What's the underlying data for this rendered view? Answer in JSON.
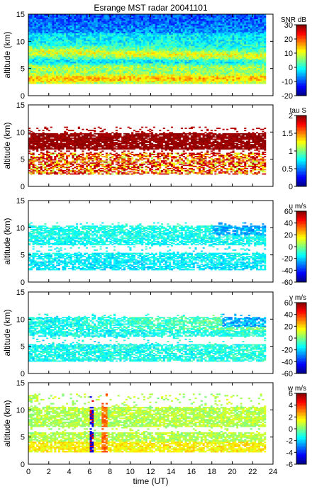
{
  "figure": {
    "title": "Esrange MST radar 20041101",
    "xlabel": "time (UT)",
    "x_ticks": [
      "0",
      "2",
      "4",
      "6",
      "8",
      "10",
      "12",
      "14",
      "16",
      "18",
      "20",
      "22",
      "24"
    ],
    "xlim": [
      0,
      24
    ]
  },
  "chart_data": [
    {
      "type": "heatmap",
      "panel": 1,
      "title": "Esrange MST radar 20041101",
      "xlabel": "",
      "ylabel": "altitude (km)",
      "xlim": [
        0,
        24
      ],
      "ylim": [
        0,
        15
      ],
      "y_ticks": [
        "0",
        "5",
        "10",
        "15"
      ],
      "data_xrange": [
        0,
        23.3
      ],
      "data_yrange": [
        2.2,
        15
      ],
      "colorbar": {
        "label": "SNR dB",
        "range": [
          -20,
          30
        ],
        "ticks": [
          "30",
          "20",
          "10",
          "0",
          "-10",
          "-20"
        ]
      },
      "field": "snr"
    },
    {
      "type": "heatmap",
      "panel": 2,
      "xlabel": "",
      "ylabel": "altitude (km)",
      "xlim": [
        0,
        24
      ],
      "ylim": [
        0,
        15
      ],
      "y_ticks": [
        "0",
        "5",
        "10",
        "15"
      ],
      "data_xrange": [
        0,
        23.3
      ],
      "data_yrange": [
        2.2,
        11
      ],
      "colorbar": {
        "label": "tau S",
        "range": [
          0,
          2
        ],
        "ticks": [
          "2",
          "1.5",
          "1",
          "0.5",
          "0"
        ]
      },
      "field": "tau"
    },
    {
      "type": "heatmap",
      "panel": 3,
      "xlabel": "",
      "ylabel": "altitude (km)",
      "xlim": [
        0,
        24
      ],
      "ylim": [
        0,
        15
      ],
      "y_ticks": [
        "0",
        "5",
        "10",
        "15"
      ],
      "data_xrange": [
        0,
        23.3
      ],
      "data_yrange": [
        2.2,
        11
      ],
      "colorbar": {
        "label": "u m/s",
        "range": [
          -60,
          60
        ],
        "ticks": [
          "60",
          "40",
          "20",
          "0",
          "-20",
          "-40",
          "-60"
        ]
      },
      "field": "u"
    },
    {
      "type": "heatmap",
      "panel": 4,
      "xlabel": "",
      "ylabel": "altitude (km)",
      "xlim": [
        0,
        24
      ],
      "ylim": [
        0,
        15
      ],
      "y_ticks": [
        "0",
        "5",
        "10",
        "15"
      ],
      "data_xrange": [
        0,
        23.3
      ],
      "data_yrange": [
        2.2,
        11
      ],
      "colorbar": {
        "label": "v m/s",
        "range": [
          -60,
          60
        ],
        "ticks": [
          "60",
          "40",
          "20",
          "0",
          "-20",
          "-40",
          "-60"
        ]
      },
      "field": "v"
    },
    {
      "type": "heatmap",
      "panel": 5,
      "xlabel": "time (UT)",
      "ylabel": "altitude (km)",
      "xlim": [
        0,
        24
      ],
      "ylim": [
        0,
        15
      ],
      "y_ticks": [
        "0",
        "5",
        "10",
        "15"
      ],
      "data_xrange": [
        0,
        23.3
      ],
      "data_yrange": [
        2.2,
        13
      ],
      "colorbar": {
        "label": "w m/s",
        "range": [
          -6,
          6
        ],
        "ticks": [
          "6",
          "4",
          "2",
          "0",
          "-2",
          "-4",
          "-6"
        ]
      },
      "field": "w"
    }
  ]
}
